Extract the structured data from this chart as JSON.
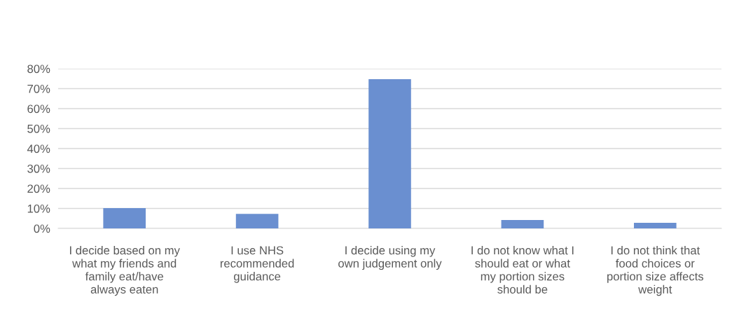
{
  "chart_data": {
    "type": "bar",
    "categories": [
      "I decide based on my\nwhat my friends and\nfamily eat/have\nalways eaten",
      "I use NHS\nrecommended\nguidance",
      "I decide using my\nown judgement only",
      "I do not know what I\nshould eat or what\nmy portion sizes\nshould be",
      "I do not think that\nfood choices or\nportion size affects\nweight"
    ],
    "values": [
      10.2,
      7.3,
      74.7,
      4.2,
      2.8
    ],
    "color": "#6a8fd0",
    "ylim": [
      0,
      80
    ],
    "yticks": [
      {
        "value": 0,
        "label": "0%"
      },
      {
        "value": 10,
        "label": "10%"
      },
      {
        "value": 20,
        "label": "20%"
      },
      {
        "value": 30,
        "label": "30%"
      },
      {
        "value": 40,
        "label": "40%"
      },
      {
        "value": 50,
        "label": "50%"
      },
      {
        "value": 60,
        "label": "60%"
      },
      {
        "value": 70,
        "label": "70%"
      },
      {
        "value": 80,
        "label": "80%"
      }
    ],
    "grid": "y"
  }
}
